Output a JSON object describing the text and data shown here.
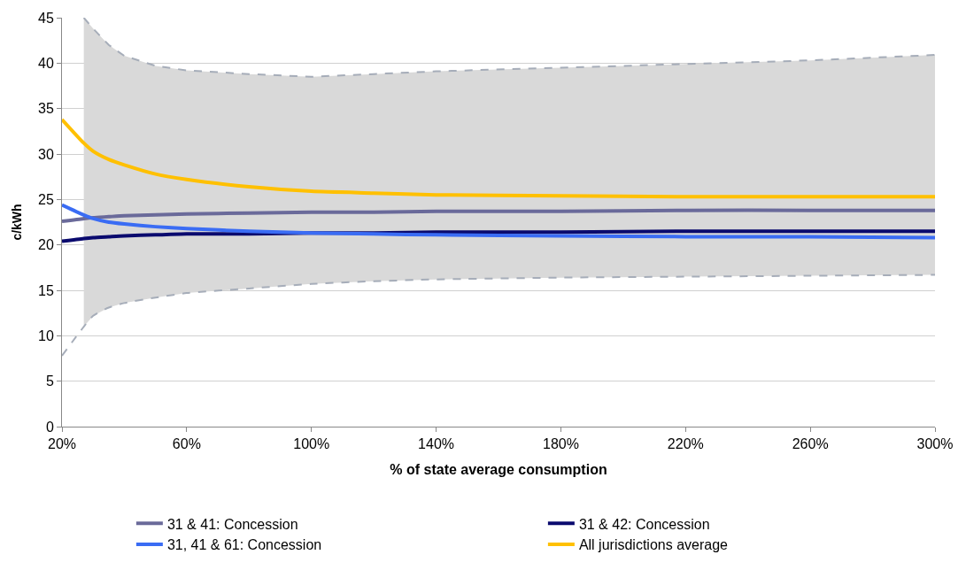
{
  "chart_data": {
    "type": "line",
    "xlabel": "% of state average consumption",
    "ylabel": "c/kWh",
    "x": [
      20,
      27,
      30,
      35,
      40,
      50,
      60,
      80,
      100,
      120,
      140,
      180,
      220,
      260,
      300
    ],
    "xlim": [
      20,
      300
    ],
    "xticks": [
      {
        "value": 20,
        "label": "20%"
      },
      {
        "value": 60,
        "label": "60%"
      },
      {
        "value": 100,
        "label": "100%"
      },
      {
        "value": 140,
        "label": "140%"
      },
      {
        "value": 180,
        "label": "180%"
      },
      {
        "value": 220,
        "label": "220%"
      },
      {
        "value": 260,
        "label": "260%"
      },
      {
        "value": 300,
        "label": "300%"
      }
    ],
    "ylim": [
      0,
      45
    ],
    "yticks": [
      0,
      5,
      10,
      15,
      20,
      25,
      30,
      35,
      40,
      45
    ],
    "grid": "y",
    "legend": "bottom",
    "marker": "none",
    "series": [
      {
        "type": "line",
        "color": "#a6adb9",
        "line_style": "dashed",
        "values": [
          7.8,
          11,
          12.2,
          13.1,
          13.6,
          14.2,
          14.7,
          15.2,
          15.7,
          16,
          16.2,
          16.4,
          16.5,
          16.6,
          16.7
        ]
      },
      {
        "type": "area",
        "color": "#a6adb9",
        "line_style": "dashed",
        "values": [
          null,
          45,
          43.8,
          42,
          40.8,
          39.7,
          39.2,
          38.8,
          38.5,
          38.8,
          39.1,
          39.5,
          39.9,
          40.3,
          40.9
        ]
      },
      {
        "name": "31 & 41: Concession",
        "color": "#6a6a9a",
        "values": [
          22.6,
          22.9,
          23.0,
          23.1,
          23.2,
          23.3,
          23.4,
          23.5,
          23.6,
          23.6,
          23.7,
          23.7,
          23.8,
          23.8,
          23.8
        ]
      },
      {
        "name": "31 & 42: Concession",
        "color": "#0a0a6e",
        "values": [
          20.4,
          20.7,
          20.8,
          20.9,
          21.0,
          21.1,
          21.2,
          21.2,
          21.3,
          21.3,
          21.4,
          21.4,
          21.5,
          21.5,
          21.5
        ]
      },
      {
        "name": "31, 41 & 61: Concession",
        "color": "#3a6cf4",
        "values": [
          24.4,
          23.3,
          22.9,
          22.5,
          22.3,
          22.0,
          21.8,
          21.5,
          21.3,
          21.2,
          21.1,
          21.0,
          20.9,
          20.9,
          20.8
        ]
      },
      {
        "name": "All jurisdictions average",
        "color": "#ffc000",
        "values": [
          33.8,
          31.2,
          30.3,
          29.4,
          28.8,
          27.8,
          27.2,
          26.4,
          25.9,
          25.7,
          25.5,
          25.4,
          25.3,
          25.3,
          25.3
        ]
      }
    ]
  }
}
